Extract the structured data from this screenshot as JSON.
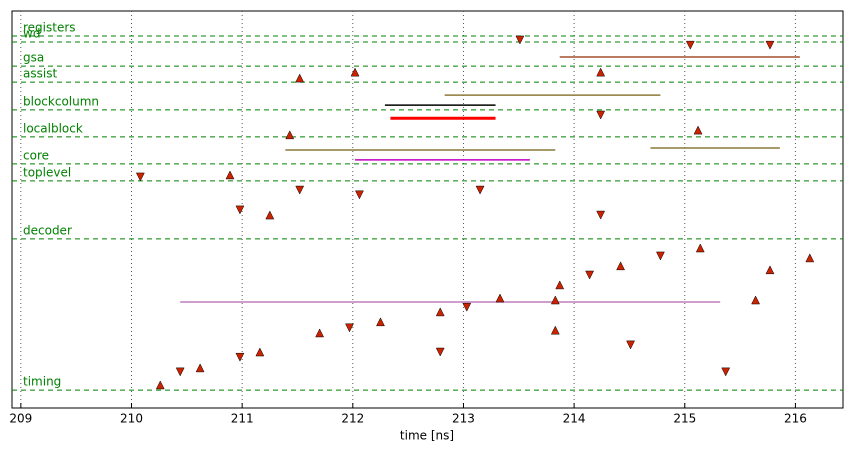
{
  "chart_data": {
    "type": "scatter",
    "x_label": "time [ns]",
    "xlim": [
      208.92,
      216.43
    ],
    "xticks": [
      209,
      210,
      211,
      212,
      213,
      214,
      215,
      216
    ],
    "ylim": [
      0,
      100
    ],
    "grid": true,
    "levels": [
      {
        "label": "registers",
        "y": 93.7
      },
      {
        "label": "wd",
        "y": 92.2
      },
      {
        "label": "gsa",
        "y": 86.1
      },
      {
        "label": "assist",
        "y": 82.1
      },
      {
        "label": "blockcolumn",
        "y": 75.1
      },
      {
        "label": "localblock",
        "y": 68.3
      },
      {
        "label": "core",
        "y": 61.5
      },
      {
        "label": "toplevel",
        "y": 57.2
      },
      {
        "label": "decoder",
        "y": 42.6
      },
      {
        "label": "timing",
        "y": 4.5
      }
    ],
    "level_color": "#008000",
    "spans": [
      {
        "x0": 212.34,
        "x1": 213.29,
        "y": 73.0,
        "color": "#ff0000"
      },
      {
        "x0": 212.02,
        "x1": 213.6,
        "y": 62.5,
        "color": "#bf00bf"
      },
      {
        "x0": 212.29,
        "x1": 213.29,
        "y": 76.3,
        "color": "#000000"
      },
      {
        "x0": 212.83,
        "x1": 214.78,
        "y": 78.8,
        "color": "#8c7a3a"
      },
      {
        "x0": 211.39,
        "x1": 213.83,
        "y": 65.0,
        "color": "#8c7a3a"
      },
      {
        "x0": 213.87,
        "x1": 216.04,
        "y": 88.4,
        "color": "#a0522d"
      },
      {
        "x0": 214.69,
        "x1": 215.86,
        "y": 65.5,
        "color": "#8c7a3a"
      },
      {
        "x0": 210.44,
        "x1": 215.32,
        "y": 26.7,
        "color": "#bf7fbf"
      }
    ],
    "series": [
      {
        "marker": "up",
        "color": "#cc2200",
        "x": [
          210.26,
          210.62,
          211.16,
          211.7,
          212.25,
          212.79,
          213.33,
          213.87,
          214.42,
          215.14,
          215.77,
          216.13,
          211.52,
          212.02,
          214.24,
          210.89,
          211.25,
          213.83,
          213.83,
          215.64,
          215.12,
          211.43
        ],
        "y": [
          5.8,
          10.1,
          14.1,
          18.9,
          21.7,
          24.2,
          27.7,
          31.0,
          35.8,
          40.3,
          34.8,
          37.8,
          83.1,
          84.6,
          84.6,
          58.7,
          48.6,
          27.2,
          19.6,
          27.2,
          70.0,
          68.8
        ]
      },
      {
        "marker": "down",
        "color": "#cc2200",
        "x": [
          210.44,
          210.98,
          211.97,
          213.03,
          214.14,
          214.78,
          210.08,
          211.52,
          213.15,
          210.98,
          213.51,
          215.05,
          215.77,
          214.24,
          214.51,
          212.79,
          215.37,
          214.24,
          212.06
        ],
        "y": [
          9.1,
          12.8,
          20.2,
          25.4,
          33.5,
          38.3,
          58.2,
          54.9,
          54.9,
          49.9,
          92.7,
          91.4,
          91.4,
          73.8,
          15.9,
          14.1,
          9.1,
          48.6,
          53.7
        ]
      }
    ]
  }
}
